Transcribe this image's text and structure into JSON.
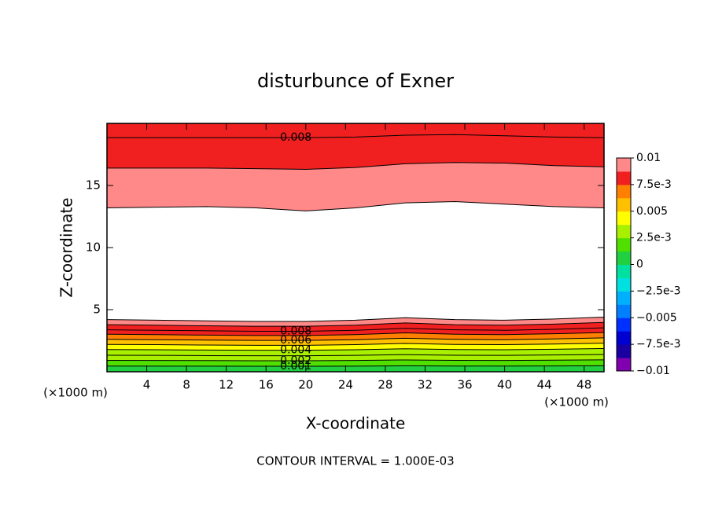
{
  "chart_data": {
    "type": "contour",
    "title": "disturbunce of Exner",
    "xlabel": "X-coordinate",
    "ylabel": "Z-coordinate",
    "x_unit": "(×1000 m)",
    "y_unit": "(×1000 m)",
    "footer": "CONTOUR INTERVAL = 1.000E-03",
    "xlim": [
      0,
      50
    ],
    "ylim": [
      0,
      20
    ],
    "xticks": [
      4,
      8,
      12,
      16,
      20,
      24,
      28,
      32,
      36,
      40,
      44,
      48
    ],
    "yticks": [
      5,
      10,
      15
    ],
    "x": [
      0,
      5,
      10,
      15,
      20,
      25,
      30,
      35,
      40,
      45,
      50
    ],
    "label_x": 19,
    "contour_sets": [
      {
        "edge": "bottom",
        "contours": [
          {
            "level": 0.001,
            "labeled": true,
            "y": [
              0.46,
              0.45,
              0.45,
              0.44,
              0.44,
              0.45,
              0.48,
              0.46,
              0.46,
              0.47,
              0.48
            ]
          },
          {
            "level": 0.002,
            "labeled": true,
            "y": [
              0.92,
              0.91,
              0.9,
              0.89,
              0.89,
              0.91,
              0.95,
              0.92,
              0.91,
              0.93,
              0.96
            ]
          },
          {
            "level": 0.003,
            "labeled": false,
            "y": [
              1.33,
              1.32,
              1.3,
              1.29,
              1.29,
              1.32,
              1.38,
              1.33,
              1.32,
              1.35,
              1.39
            ]
          },
          {
            "level": 0.004,
            "labeled": true,
            "y": [
              1.79,
              1.77,
              1.75,
              1.73,
              1.73,
              1.77,
              1.85,
              1.79,
              1.77,
              1.81,
              1.87
            ]
          },
          {
            "level": 0.005,
            "labeled": false,
            "y": [
              2.2,
              2.18,
              2.15,
              2.13,
              2.13,
              2.18,
              2.28,
              2.2,
              2.18,
              2.23,
              2.3
            ]
          },
          {
            "level": 0.006,
            "labeled": true,
            "y": [
              2.61,
              2.58,
              2.55,
              2.52,
              2.52,
              2.58,
              2.7,
              2.61,
              2.58,
              2.64,
              2.73
            ]
          },
          {
            "level": 0.007,
            "labeled": false,
            "y": [
              3.02,
              2.99,
              2.95,
              2.92,
              2.92,
              2.99,
              3.13,
              3.02,
              2.99,
              3.06,
              3.16
            ]
          },
          {
            "level": 0.008,
            "labeled": true,
            "y": [
              3.38,
              3.34,
              3.3,
              3.26,
              3.26,
              3.34,
              3.5,
              3.38,
              3.34,
              3.42,
              3.54
            ]
          },
          {
            "level": 0.009,
            "labeled": false,
            "y": [
              3.79,
              3.75,
              3.7,
              3.66,
              3.66,
              3.75,
              3.93,
              3.79,
              3.75,
              3.84,
              3.97
            ]
          },
          {
            "level": 0.01,
            "labeled": false,
            "y": [
              4.2,
              4.15,
              4.1,
              4.05,
              4.05,
              4.15,
              4.35,
              4.2,
              4.15,
              4.25,
              4.4
            ]
          }
        ]
      },
      {
        "edge": "top",
        "contours": [
          {
            "level": 0.008,
            "labeled": true,
            "y": [
              18.85,
              18.85,
              18.85,
              18.85,
              18.85,
              18.9,
              19.05,
              19.1,
              19.0,
              18.9,
              18.85
            ]
          },
          {
            "level": 0.009,
            "labeled": false,
            "y": [
              16.4,
              16.4,
              16.4,
              16.35,
              16.3,
              16.45,
              16.75,
              16.85,
              16.8,
              16.6,
              16.5
            ]
          },
          {
            "level": 0.01,
            "labeled": false,
            "y": [
              13.2,
              13.25,
              13.3,
              13.2,
              12.95,
              13.2,
              13.6,
              13.7,
              13.5,
              13.3,
              13.2
            ]
          }
        ]
      }
    ],
    "colorbar": {
      "ticks": [
        {
          "value": -0.01,
          "label": "−0.01"
        },
        {
          "value": -0.0075,
          "label": "−7.5e-3"
        },
        {
          "value": -0.005,
          "label": "−0.005"
        },
        {
          "value": -0.0025,
          "label": "−2.5e-3"
        },
        0,
        {
          "value": 0.0025,
          "label": "2.5e-3"
        },
        0.005,
        {
          "value": 0.0075,
          "label": "7.5e-3"
        },
        0.01
      ],
      "colors": [
        "#8000b0",
        "#1a00a0",
        "#0000d0",
        "#0030ff",
        "#0080ff",
        "#00b0ff",
        "#00e0e0",
        "#00e0a0",
        "#20d040",
        "#50e000",
        "#a8f000",
        "#ffff00",
        "#ffc000",
        "#ff8000",
        "#f02020",
        "#ff8888"
      ]
    }
  }
}
